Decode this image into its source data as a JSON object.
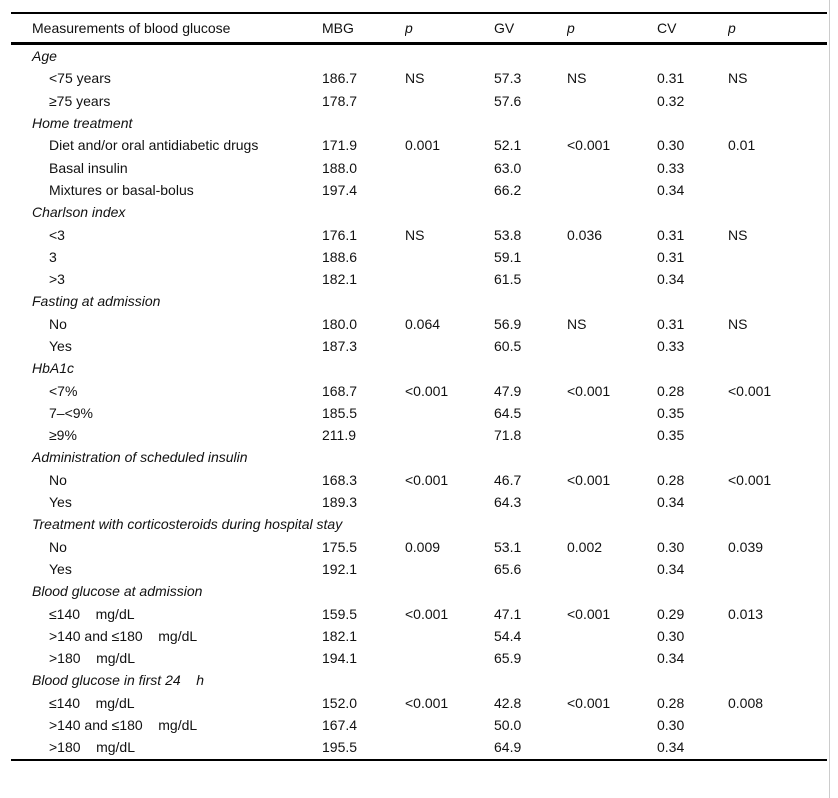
{
  "colors": {
    "background": "#ffffff",
    "text": "#111111",
    "rule": "#000000",
    "figure_edge": "#cccccc"
  },
  "table": {
    "header": {
      "label": "Measurements of blood glucose",
      "columns": [
        "MBG",
        "p",
        "GV",
        "p",
        "CV",
        "p"
      ]
    },
    "sections": [
      {
        "title": "Age",
        "rows": [
          {
            "label": "<75 years",
            "values": [
              "186.7",
              "NS",
              "57.3",
              "NS",
              "0.31",
              "NS"
            ]
          },
          {
            "label": "≥75 years",
            "values": [
              "178.7",
              "",
              "57.6",
              "",
              "0.32",
              ""
            ]
          }
        ]
      },
      {
        "title": "Home treatment",
        "rows": [
          {
            "label": "Diet and/or oral antidiabetic drugs",
            "values": [
              "171.9",
              "0.001",
              "52.1",
              "<0.001",
              "0.30",
              "0.01"
            ]
          },
          {
            "label": "Basal insulin",
            "values": [
              "188.0",
              "",
              "63.0",
              "",
              "0.33",
              ""
            ]
          },
          {
            "label": "Mixtures or basal-bolus",
            "values": [
              "197.4",
              "",
              "66.2",
              "",
              "0.34",
              ""
            ]
          }
        ]
      },
      {
        "title": "Charlson index",
        "rows": [
          {
            "label": "<3",
            "values": [
              "176.1",
              "NS",
              "53.8",
              "0.036",
              "0.31",
              "NS"
            ]
          },
          {
            "label": "3",
            "values": [
              "188.6",
              "",
              "59.1",
              "",
              "0.31",
              ""
            ]
          },
          {
            "label": ">3",
            "values": [
              "182.1",
              "",
              "61.5",
              "",
              "0.34",
              ""
            ]
          }
        ]
      },
      {
        "title": "Fasting at admission",
        "rows": [
          {
            "label": "No",
            "values": [
              "180.0",
              "0.064",
              "56.9",
              "NS",
              "0.31",
              "NS"
            ]
          },
          {
            "label": "Yes",
            "values": [
              "187.3",
              "",
              "60.5",
              "",
              "0.33",
              ""
            ]
          }
        ]
      },
      {
        "title": "HbA1c",
        "rows": [
          {
            "label": "<7%",
            "values": [
              "168.7",
              "<0.001",
              "47.9",
              "<0.001",
              "0.28",
              "<0.001"
            ]
          },
          {
            "label": "7–<9%",
            "values": [
              "185.5",
              "",
              "64.5",
              "",
              "0.35",
              ""
            ]
          },
          {
            "label": "≥9%",
            "values": [
              "211.9",
              "",
              "71.8",
              "",
              "0.35",
              ""
            ]
          }
        ]
      },
      {
        "title": "Administration of scheduled insulin",
        "rows": [
          {
            "label": "No",
            "values": [
              "168.3",
              "<0.001",
              "46.7",
              "<0.001",
              "0.28",
              "<0.001"
            ]
          },
          {
            "label": "Yes",
            "values": [
              "189.3",
              "",
              "64.3",
              "",
              "0.34",
              ""
            ]
          }
        ]
      },
      {
        "title": "Treatment with corticosteroids during hospital stay",
        "rows": [
          {
            "label": "No",
            "values": [
              "175.5",
              "0.009",
              "53.1",
              "0.002",
              "0.30",
              "0.039"
            ]
          },
          {
            "label": "Yes",
            "values": [
              "192.1",
              "",
              "65.6",
              "",
              "0.34",
              ""
            ]
          }
        ]
      },
      {
        "title": "Blood glucose at admission",
        "rows": [
          {
            "label": "≤140    mg/dL",
            "values": [
              "159.5",
              "<0.001",
              "47.1",
              "<0.001",
              "0.29",
              "0.013"
            ]
          },
          {
            "label": ">140 and ≤180    mg/dL",
            "values": [
              "182.1",
              "",
              "54.4",
              "",
              "0.30",
              ""
            ]
          },
          {
            "label": ">180    mg/dL",
            "values": [
              "194.1",
              "",
              "65.9",
              "",
              "0.34",
              ""
            ]
          }
        ]
      },
      {
        "title": "Blood glucose in first 24    h",
        "rows": [
          {
            "label": "≤140    mg/dL",
            "values": [
              "152.0",
              "<0.001",
              "42.8",
              "<0.001",
              "0.28",
              "0.008"
            ]
          },
          {
            "label": ">140 and ≤180    mg/dL",
            "values": [
              "167.4",
              "",
              "50.0",
              "",
              "0.30",
              ""
            ]
          },
          {
            "label": ">180    mg/dL",
            "values": [
              "195.5",
              "",
              "64.9",
              "",
              "0.34",
              ""
            ]
          }
        ]
      }
    ]
  }
}
